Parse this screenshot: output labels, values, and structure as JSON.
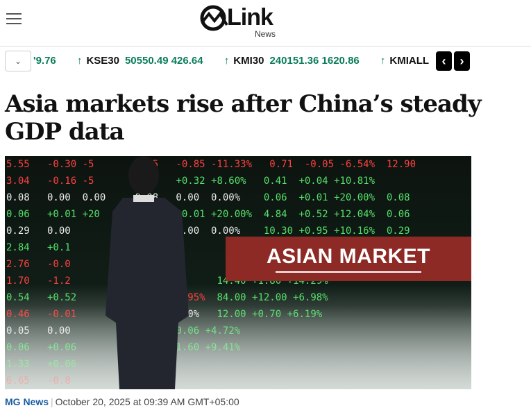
{
  "header": {
    "logo_text": "Link",
    "logo_sub": "News"
  },
  "ticker": {
    "items": [
      {
        "symbol": "",
        "value": "'9.76",
        "direction": "up-partial"
      },
      {
        "symbol": "KSE30",
        "value": "50550.49 426.64",
        "direction": "up"
      },
      {
        "symbol": "KMI30",
        "value": "240151.36 1620.86",
        "direction": "up"
      },
      {
        "symbol": "KMIALL",
        "value": "",
        "direction": "up"
      }
    ],
    "arrow": "↑",
    "prev": "‹",
    "next": "›",
    "dropdown": "⌄",
    "up_color": "#0a7d5a"
  },
  "article": {
    "headline": "Asia markets rise after China’s steady GDP data",
    "image_banner": "ASIAN MARKET",
    "source": "MG News",
    "separator": "|",
    "date": "October 20, 2025 at 09:39 AM GMT+05:00"
  }
}
